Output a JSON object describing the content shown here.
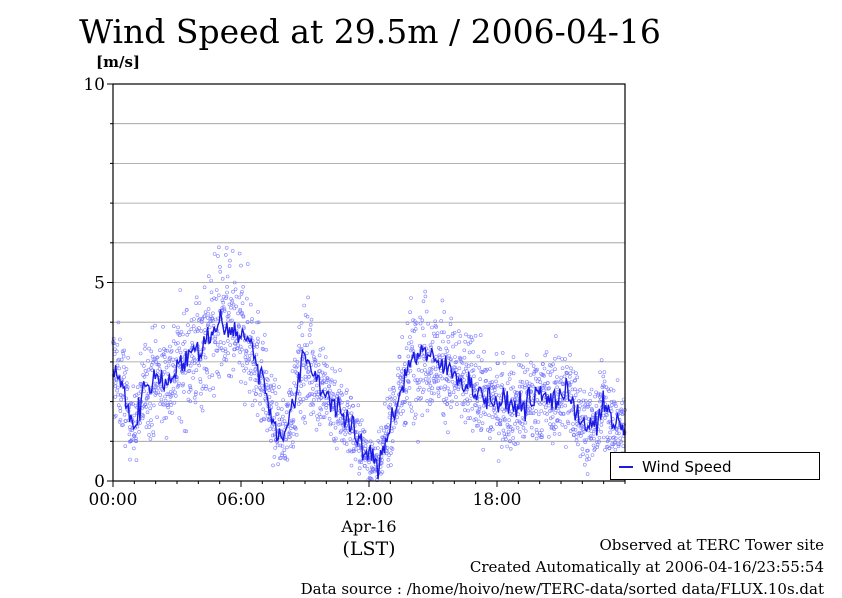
{
  "chart_data": {
    "type": "scatter",
    "title": "Wind Speed at 29.5m / 2006-04-16",
    "ylabel": "[m/s]",
    "xlabel": "(LST)",
    "x_date_label": "Apr-16",
    "xlim_hours": [
      0,
      24
    ],
    "ylim": [
      0,
      10
    ],
    "y_ticks": [
      "0",
      "5",
      "10"
    ],
    "x_ticks": [
      "00:00",
      "06:00",
      "12:00",
      "18:00"
    ],
    "grid": true,
    "legend_position": "right",
    "series": [
      {
        "name": "Wind Speed",
        "style": "line over scatter points",
        "x_hours": [
          0,
          0.5,
          1,
          1.5,
          2,
          2.5,
          3,
          3.5,
          4,
          4.5,
          5,
          5.5,
          6,
          6.5,
          7,
          7.5,
          8,
          8.5,
          9,
          9.5,
          10,
          10.5,
          11,
          11.5,
          12,
          12.5,
          13,
          13.5,
          14,
          14.5,
          15,
          15.5,
          16,
          16.5,
          17,
          17.5,
          18,
          18.5,
          19,
          19.5,
          20,
          20.5,
          21,
          21.5,
          22,
          22.5,
          23,
          23.5
        ],
        "values": [
          2.8,
          2.3,
          1.3,
          2.4,
          2.6,
          2.5,
          2.9,
          3.1,
          3.3,
          3.6,
          4.1,
          3.8,
          3.7,
          3.4,
          2.6,
          1.5,
          1.1,
          2.0,
          3.2,
          2.6,
          2.2,
          1.9,
          1.5,
          1.0,
          0.6,
          0.4,
          1.5,
          2.3,
          3.1,
          3.3,
          3.0,
          2.9,
          2.7,
          2.5,
          2.3,
          2.1,
          2.0,
          1.9,
          1.9,
          2.0,
          2.2,
          2.0,
          2.2,
          2.1,
          1.5,
          1.3,
          1.9,
          1.4
        ]
      }
    ]
  },
  "legend": {
    "label": "Wind Speed"
  },
  "footer": {
    "line1": "Observed at TERC Tower site",
    "line2": "Created Automatically at 2006-04-16/23:55:54",
    "line3": "Data source : /home/hoivo/new/TERC-data/sorted  data/FLUX.10s.dat"
  },
  "colors": {
    "series": "#1a1ae6",
    "scatter": "#7070ff",
    "grid": "#999999"
  }
}
